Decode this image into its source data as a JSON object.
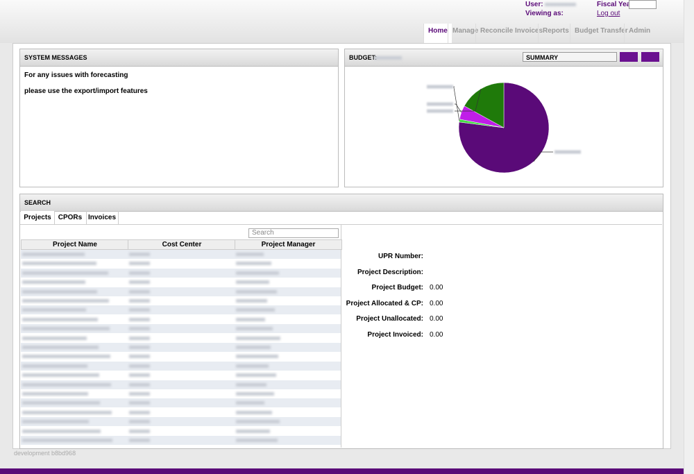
{
  "header": {
    "user_label": "User:",
    "viewing_label": "Viewing as:",
    "fiscal_label": "Fiscal Year:",
    "logout": "Log out"
  },
  "nav": [
    "Home",
    "Manage",
    "Reconcile Invoices",
    "Reports",
    "Budget Transfer",
    "Admin"
  ],
  "system_messages": {
    "title": "SYSTEM MESSAGES",
    "lines": [
      "For any issues with forecasting",
      "please use the export/import features"
    ]
  },
  "budget": {
    "title": "BUDGET:",
    "view": "SUMMARY",
    "chart_data": {
      "type": "pie",
      "values": [
        77,
        1,
        5,
        17
      ],
      "colors": [
        "#5a0a78",
        "#44dd44",
        "#c01ee8",
        "#1f7a0a"
      ]
    }
  },
  "search": {
    "title": "SEARCH",
    "tabs": [
      "Projects",
      "CPORs",
      "Invoices"
    ],
    "placeholder": "Search",
    "columns": [
      "Project Name",
      "Cost Center",
      "Project Manager"
    ],
    "details": [
      [
        "UPR Number:",
        ""
      ],
      [
        "Project Description:",
        ""
      ],
      [
        "Project Budget:",
        "0.00"
      ],
      [
        "Project Allocated & CP:",
        "0.00"
      ],
      [
        "Project Unallocated:",
        "0.00"
      ],
      [
        "Project Invoiced:",
        "0.00"
      ]
    ]
  },
  "footer": "development b8bd968"
}
